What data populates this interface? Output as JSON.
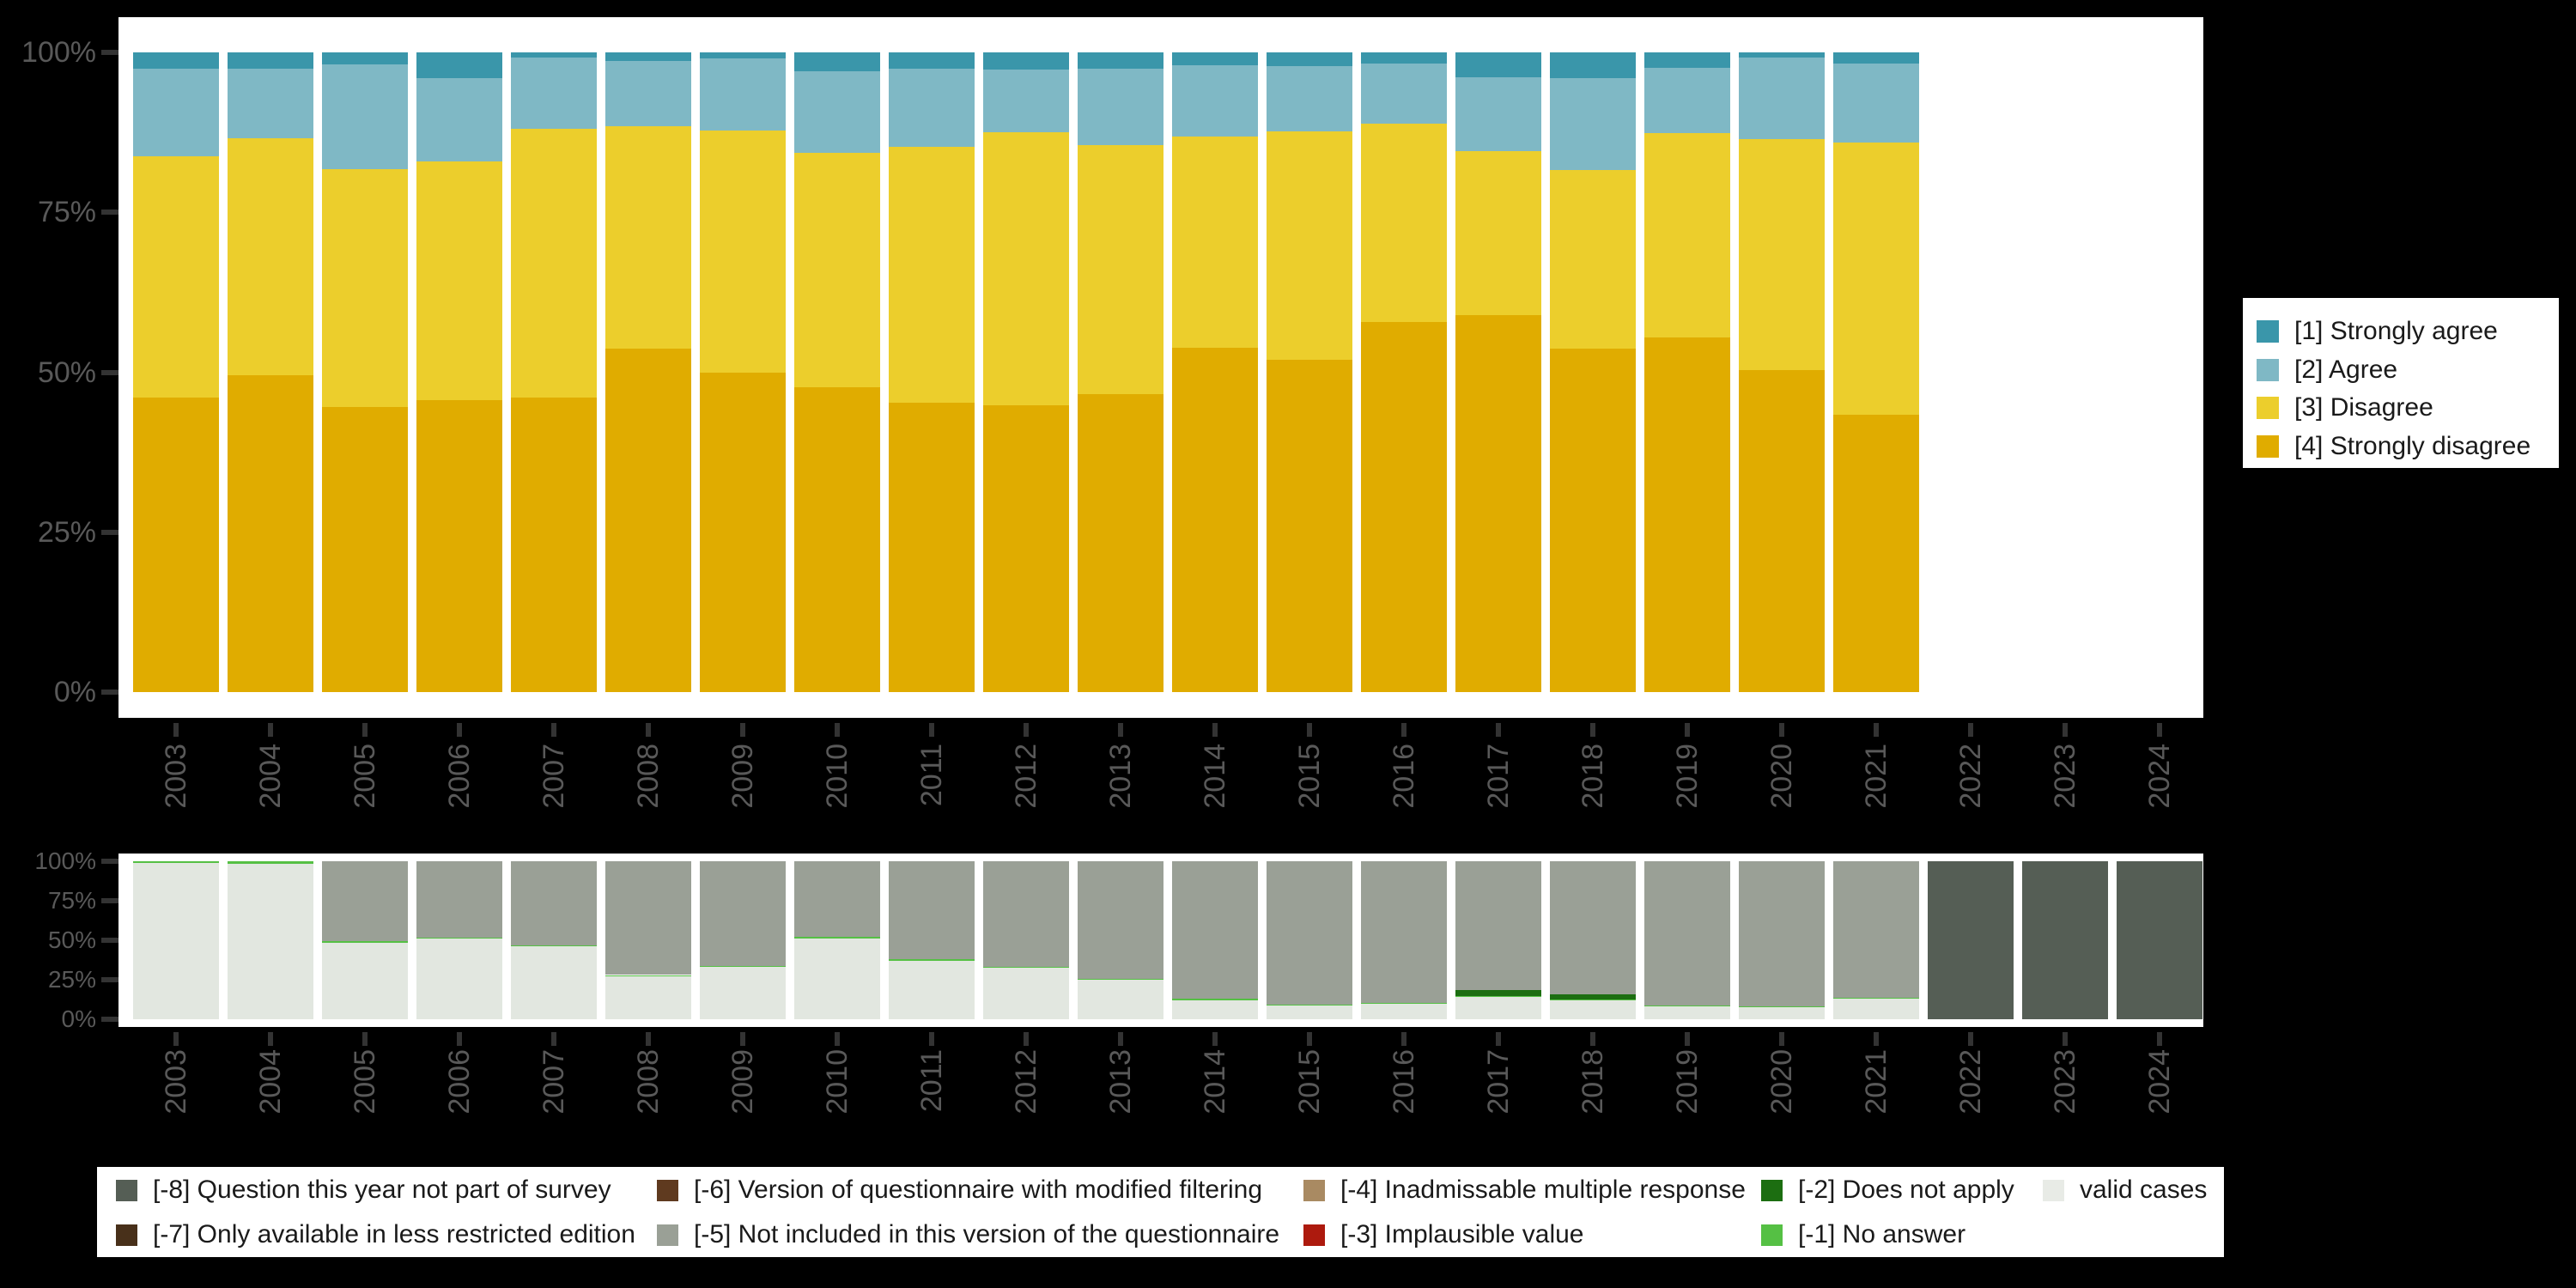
{
  "background": "#000000",
  "panel_color": "#ffffff",
  "axis": {
    "tick_color": "#333333",
    "label_color": "#595959"
  },
  "chart_data": [
    {
      "id": "responses",
      "type": "bar",
      "stacked": true,
      "unit": "percent",
      "ylim": [
        0,
        100
      ],
      "grid": false,
      "categories": [
        "2003",
        "2004",
        "2005",
        "2006",
        "2007",
        "2008",
        "2009",
        "2010",
        "2011",
        "2012",
        "2013",
        "2014",
        "2015",
        "2016",
        "2017",
        "2018",
        "2019",
        "2020",
        "2021",
        "2022",
        "2023",
        "2024"
      ],
      "yticks": {
        "values": [
          0,
          25,
          50,
          75,
          100
        ],
        "labels": [
          "0%",
          "25%",
          "50%",
          "75%",
          "100%"
        ]
      },
      "series": [
        {
          "label": "[4] Strongly disagree",
          "color": "#e0ac00",
          "values": [
            46.1,
            49.5,
            44.5,
            45.6,
            46.1,
            53.7,
            49.9,
            47.7,
            45.3,
            44.9,
            46.6,
            53.8,
            51.9,
            57.8,
            58.9,
            53.7,
            55.4,
            50.4,
            43.4,
            0,
            0,
            0
          ]
        },
        {
          "label": "[3] Disagree",
          "color": "#ecce2c",
          "values": [
            37.6,
            37.1,
            37.2,
            37.3,
            41.9,
            34.7,
            37.9,
            36.6,
            39.9,
            42.6,
            38.9,
            33.1,
            35.7,
            31.1,
            25.6,
            27.9,
            32.0,
            36.0,
            42.5,
            0,
            0,
            0
          ]
        },
        {
          "label": "[2] Agree",
          "color": "#7fb8c5",
          "values": [
            13.8,
            10.9,
            16.4,
            13.1,
            11.2,
            10.2,
            11.2,
            12.7,
            12.3,
            9.8,
            12.0,
            11.1,
            10.3,
            9.4,
            11.6,
            14.4,
            10.2,
            12.8,
            12.3,
            0,
            0,
            0
          ]
        },
        {
          "label": "[1] Strongly agree",
          "color": "#3a96aa",
          "values": [
            2.5,
            2.5,
            1.9,
            4.0,
            0.8,
            1.4,
            1.0,
            3.0,
            2.5,
            2.7,
            2.5,
            2.0,
            2.1,
            1.7,
            3.9,
            4.0,
            2.4,
            0.8,
            1.8,
            0,
            0,
            0
          ]
        }
      ],
      "legend": {
        "position": "right",
        "items": [
          {
            "label": "[1] Strongly agree",
            "color": "#3a96aa"
          },
          {
            "label": "[2] Agree",
            "color": "#7fb8c5"
          },
          {
            "label": "[3] Disagree",
            "color": "#ecce2c"
          },
          {
            "label": "[4] Strongly disagree",
            "color": "#e0ac00"
          }
        ]
      }
    },
    {
      "id": "missings",
      "type": "bar",
      "stacked": true,
      "unit": "percent",
      "ylim": [
        0,
        100
      ],
      "grid": false,
      "categories": [
        "2003",
        "2004",
        "2005",
        "2006",
        "2007",
        "2008",
        "2009",
        "2010",
        "2011",
        "2012",
        "2013",
        "2014",
        "2015",
        "2016",
        "2017",
        "2018",
        "2019",
        "2020",
        "2021",
        "2022",
        "2023",
        "2024"
      ],
      "yticks": {
        "values": [
          0,
          25,
          50,
          75,
          100
        ],
        "labels": [
          "0%",
          "25%",
          "50%",
          "75%",
          "100%"
        ]
      },
      "series": [
        {
          "label": "valid cases",
          "color": "#e2e7e0",
          "values": [
            99,
            98.5,
            48.5,
            51,
            46,
            27.5,
            33,
            51,
            37,
            32.5,
            25,
            12,
            9,
            10,
            14,
            12,
            8,
            7.5,
            13,
            0,
            0,
            0
          ]
        },
        {
          "label": "[-1] No answer",
          "color": "#55c044",
          "values": [
            1,
            1.5,
            1,
            0.5,
            1,
            0.5,
            0.5,
            1,
            1,
            0.5,
            0.5,
            1,
            0.5,
            0.5,
            0.5,
            0.5,
            0.5,
            0.5,
            0.5,
            0,
            0,
            0
          ]
        },
        {
          "label": "[-2] Does not apply",
          "color": "#1c6e11",
          "values": [
            0,
            0,
            0,
            0,
            0,
            0,
            0,
            0,
            0,
            0,
            0,
            0,
            0,
            0,
            4,
            3,
            0,
            0,
            0,
            0,
            0,
            0
          ]
        },
        {
          "label": "[-5] Not included in this version of the questionnaire",
          "color": "#9aa096",
          "values": [
            0,
            0,
            50.5,
            48.5,
            53,
            72,
            66.5,
            48,
            62,
            67,
            74.5,
            87,
            90.5,
            89.5,
            81.5,
            84.5,
            91.5,
            92,
            86.5,
            0,
            0,
            0
          ]
        },
        {
          "label": "[-8] Question this year not part of survey",
          "color": "#555e55",
          "values": [
            0,
            0,
            0,
            0,
            0,
            0,
            0,
            0,
            0,
            0,
            0,
            0,
            0,
            0,
            0,
            0,
            0,
            0,
            0,
            100,
            100,
            100
          ]
        }
      ]
    }
  ],
  "missing_legend": {
    "items": [
      {
        "label": "[-8] Question this year not part of survey",
        "color": "#555e55",
        "col": 0,
        "row": 0
      },
      {
        "label": "[-7] Only available in less restricted edition",
        "color": "#48301a",
        "col": 0,
        "row": 1
      },
      {
        "label": "[-6] Version of questionnaire with modified filtering",
        "color": "#5f3a1f",
        "col": 1,
        "row": 0
      },
      {
        "label": "[-5] Not included in this version of the questionnaire",
        "color": "#9aa096",
        "col": 1,
        "row": 1
      },
      {
        "label": "[-4] Inadmissable multiple response",
        "color": "#a98a62",
        "col": 2,
        "row": 0
      },
      {
        "label": "[-3] Implausible value",
        "color": "#ad1a0e",
        "col": 2,
        "row": 1
      },
      {
        "label": "[-2] Does not apply",
        "color": "#1c6e11",
        "col": 3,
        "row": 0
      },
      {
        "label": "[-1] No answer",
        "color": "#55c044",
        "col": 3,
        "row": 1
      },
      {
        "label": "valid cases",
        "color": "#e8ebe6",
        "col": 4,
        "row": 0
      }
    ]
  }
}
